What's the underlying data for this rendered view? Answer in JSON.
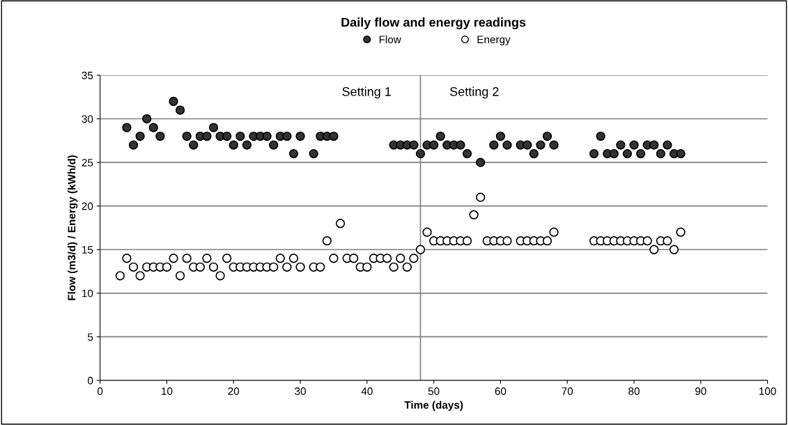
{
  "chart_data": {
    "type": "scatter",
    "title": "Daily flow and energy readings",
    "xlabel": "Time (days)",
    "ylabel": "Flow (m3/d) / Energy (kWh/d)",
    "series": [
      {
        "name": "Flow",
        "color": "#333333",
        "x": [
          4,
          5,
          6,
          7,
          8,
          9,
          11,
          12,
          13,
          14,
          15,
          16,
          17,
          18,
          19,
          20,
          21,
          22,
          23,
          24,
          25,
          26,
          27,
          28,
          29,
          30,
          32,
          33,
          34,
          35,
          44,
          45,
          46,
          47,
          48,
          49,
          50,
          51,
          52,
          53,
          54,
          55,
          57,
          59,
          60,
          61,
          63,
          64,
          65,
          66,
          67,
          68,
          74,
          75,
          76,
          77,
          78,
          79,
          80,
          81,
          82,
          83,
          84,
          85,
          86,
          87
        ],
        "values": [
          29,
          27,
          28,
          30,
          29,
          28,
          32,
          31,
          28,
          27,
          28,
          28,
          29,
          28,
          28,
          27,
          28,
          27,
          28,
          28,
          28,
          27,
          28,
          28,
          26,
          28,
          26,
          28,
          28,
          28,
          27,
          27,
          27,
          27,
          26,
          27,
          27,
          28,
          27,
          27,
          27,
          26,
          25,
          27,
          28,
          27,
          27,
          27,
          26,
          27,
          28,
          27,
          26,
          28,
          26,
          26,
          27,
          26,
          27,
          26,
          27,
          27,
          26,
          27,
          26,
          26
        ]
      },
      {
        "name": "Energy",
        "color": "#ffffff",
        "x": [
          3,
          4,
          5,
          6,
          7,
          8,
          9,
          10,
          11,
          12,
          13,
          14,
          15,
          16,
          17,
          18,
          19,
          20,
          21,
          22,
          23,
          24,
          25,
          26,
          27,
          28,
          29,
          30,
          32,
          33,
          34,
          35,
          36,
          37,
          38,
          39,
          40,
          41,
          42,
          43,
          44,
          45,
          46,
          47,
          48,
          49,
          50,
          51,
          52,
          53,
          54,
          55,
          56,
          57,
          58,
          59,
          60,
          61,
          63,
          64,
          65,
          66,
          67,
          68,
          74,
          75,
          76,
          77,
          78,
          79,
          80,
          81,
          82,
          83,
          84,
          85,
          86,
          87
        ],
        "values": [
          12,
          14,
          13,
          12,
          13,
          13,
          13,
          13,
          14,
          12,
          14,
          13,
          13,
          14,
          13,
          12,
          14,
          13,
          13,
          13,
          13,
          13,
          13,
          13,
          14,
          13,
          14,
          13,
          13,
          13,
          16,
          14,
          18,
          14,
          14,
          13,
          13,
          14,
          14,
          14,
          13,
          14,
          13,
          14,
          15,
          17,
          16,
          16,
          16,
          16,
          16,
          16,
          19,
          21,
          16,
          16,
          16,
          16,
          16,
          16,
          16,
          16,
          16,
          17,
          16,
          16,
          16,
          16,
          16,
          16,
          16,
          16,
          16,
          15,
          16,
          16,
          15,
          17
        ]
      }
    ],
    "xlim": [
      0,
      100
    ],
    "xticks": [
      0,
      10,
      20,
      30,
      40,
      50,
      60,
      70,
      80,
      90,
      100
    ],
    "ylim": [
      0,
      35
    ],
    "yticks": [
      0,
      5,
      10,
      15,
      20,
      25,
      30,
      35
    ],
    "grid": "y",
    "legend": "top",
    "marker": "circle",
    "ref_lines": [
      {
        "axis": "x",
        "value": 48,
        "color": "#808080"
      }
    ],
    "annotations": [
      "Setting 1",
      "Setting 2"
    ]
  }
}
